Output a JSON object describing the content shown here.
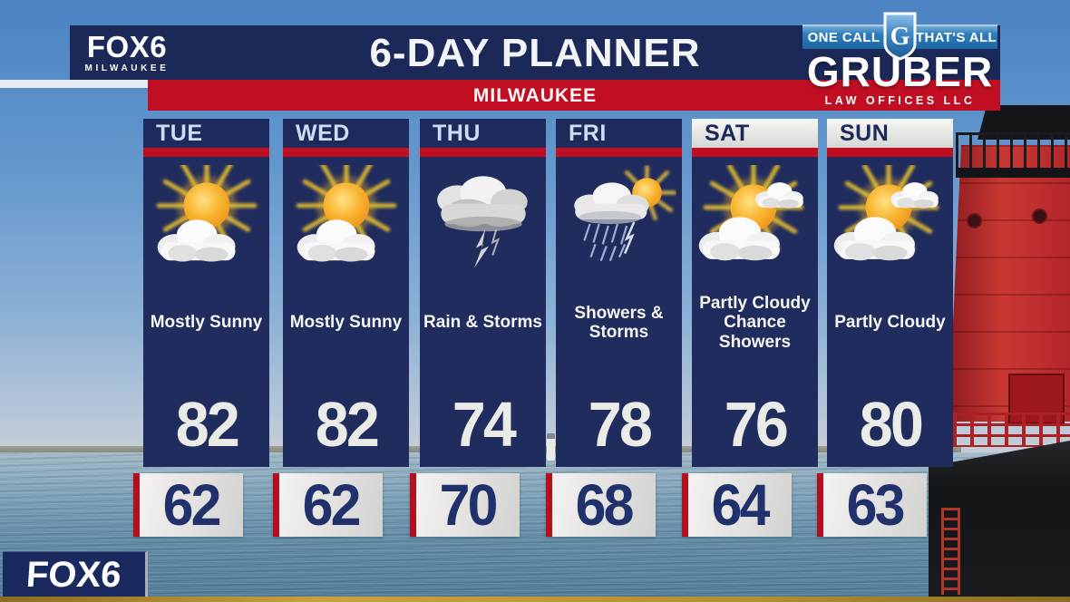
{
  "header": {
    "station": {
      "name": "FOX6",
      "city": "MILWAUKEE"
    },
    "title": "6-DAY PLANNER",
    "subtitle": "MILWAUKEE",
    "sponsor": {
      "tagline_left": "ONE CALL",
      "tagline_right": "THAT'S ALL",
      "shield_letter": "G",
      "name": "GRUBER",
      "subname": "LAW OFFICES LLC"
    }
  },
  "planner": {
    "columns": [
      {
        "day": "TUE",
        "condition": "Mostly Sunny",
        "icon": "mostly-sunny",
        "high": "82",
        "low": "62"
      },
      {
        "day": "WED",
        "condition": "Mostly Sunny",
        "icon": "mostly-sunny",
        "high": "82",
        "low": "62"
      },
      {
        "day": "THU",
        "condition": "Rain & Storms",
        "icon": "rain-storms",
        "high": "74",
        "low": "70"
      },
      {
        "day": "FRI",
        "condition": "Showers & Storms",
        "icon": "showers-storms",
        "high": "78",
        "low": "68"
      },
      {
        "day": "SAT",
        "condition": "Partly Cloudy Chance Showers",
        "icon": "partly-cloudy-showers",
        "high": "76",
        "low": "64"
      },
      {
        "day": "SUN",
        "condition": "Partly Cloudy",
        "icon": "partly-cloudy",
        "high": "80",
        "low": "63"
      }
    ]
  },
  "footer": {
    "station_logo": "FOX6"
  },
  "colors": {
    "navy": "#1c2858",
    "panel_navy": "#202c5e",
    "red": "#c10e22",
    "low_accent_red": "#b30f1e",
    "gold": "#b3902f",
    "sky_top": "#4b83c4",
    "water": "#628ba6",
    "lighthouse_red": "#c93832",
    "sponsor_blue": "#2f7cba"
  },
  "chart_data": {
    "type": "table",
    "title": "6-DAY PLANNER",
    "location": "MILWAUKEE",
    "columns": [
      "day",
      "condition",
      "high_f",
      "low_f"
    ],
    "rows": [
      [
        "TUE",
        "Mostly Sunny",
        82,
        62
      ],
      [
        "WED",
        "Mostly Sunny",
        82,
        62
      ],
      [
        "THU",
        "Rain & Storms",
        74,
        70
      ],
      [
        "FRI",
        "Showers & Storms",
        78,
        68
      ],
      [
        "SAT",
        "Partly Cloudy Chance Showers",
        76,
        64
      ],
      [
        "SUN",
        "Partly Cloudy",
        80,
        63
      ]
    ]
  }
}
